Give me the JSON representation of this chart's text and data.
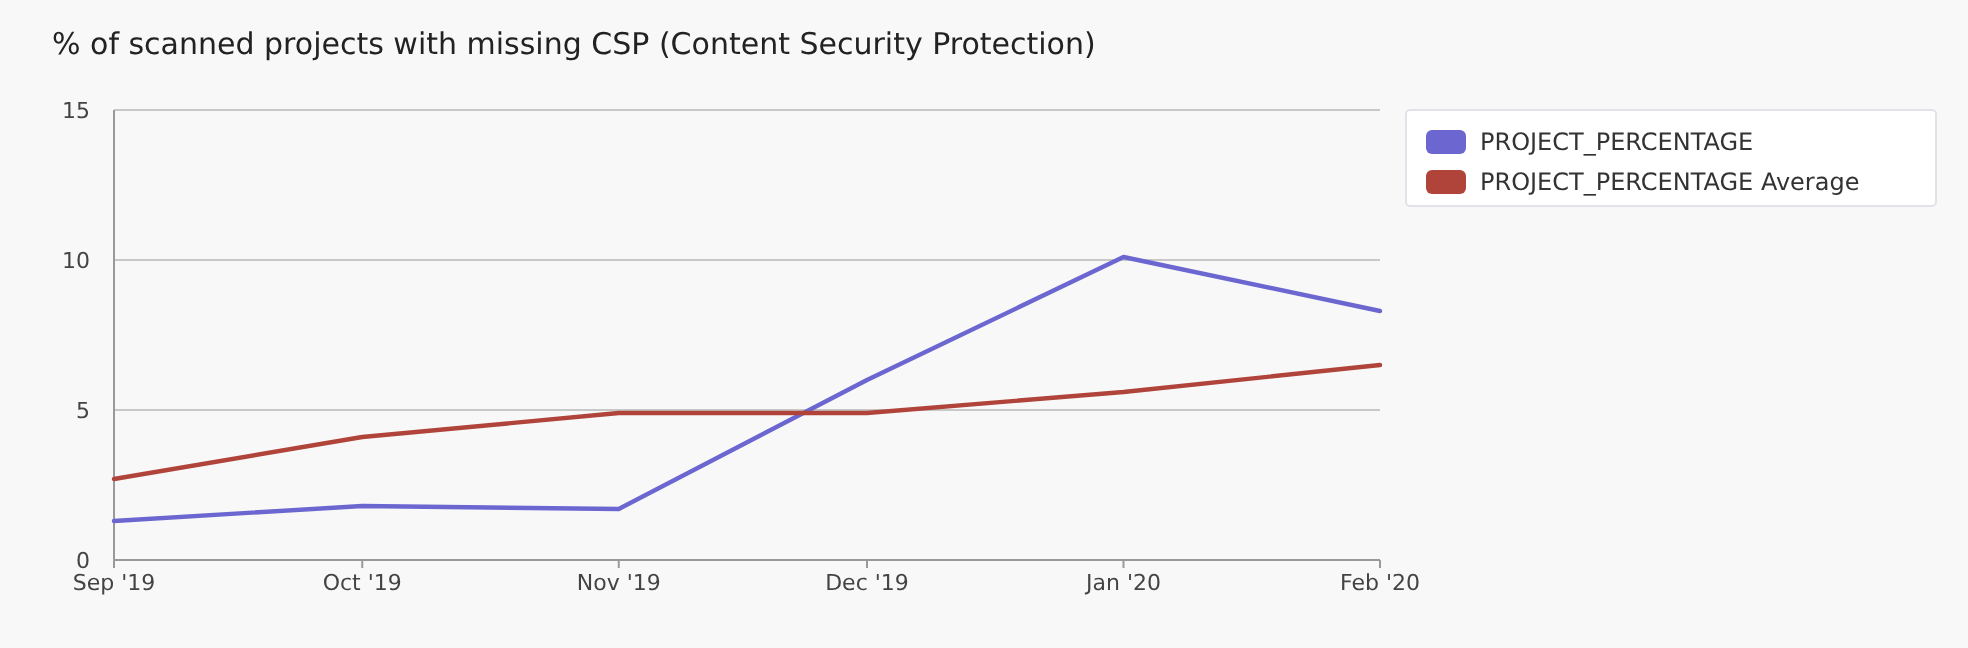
{
  "chart_data": {
    "type": "line",
    "title": "% of scanned projects with missing CSP (Content Security Protection)",
    "x": [
      "2019-09",
      "2019-10",
      "2019-11",
      "2019-12",
      "2020-01",
      "2020-02"
    ],
    "series": [
      {
        "name": "PROJECT_PERCENTAGE",
        "color": "#6b66d0",
        "values": [
          1.3,
          1.8,
          1.7,
          6.0,
          10.1,
          8.3
        ]
      },
      {
        "name": "PROJECT_PERCENTAGE Average",
        "color": "#b0443a",
        "values": [
          2.7,
          4.1,
          4.9,
          4.9,
          5.6,
          6.5
        ]
      }
    ],
    "xlim": [
      "2019-09",
      "2020-02"
    ],
    "xticks": [
      {
        "value": "2019-09",
        "label": "Sep '19"
      },
      {
        "value": "2019-10",
        "label": "Oct '19"
      },
      {
        "value": "2019-11",
        "label": "Nov '19"
      },
      {
        "value": "2019-12",
        "label": "Dec '19"
      },
      {
        "value": "2020-01",
        "label": "Jan '20"
      },
      {
        "value": "2020-02",
        "label": "Feb '20"
      }
    ],
    "ylim": [
      0,
      15
    ],
    "yticks": [
      0,
      5,
      10,
      15
    ],
    "grid": "y",
    "legend": "top right",
    "marker": "none",
    "line_style": "solid"
  }
}
